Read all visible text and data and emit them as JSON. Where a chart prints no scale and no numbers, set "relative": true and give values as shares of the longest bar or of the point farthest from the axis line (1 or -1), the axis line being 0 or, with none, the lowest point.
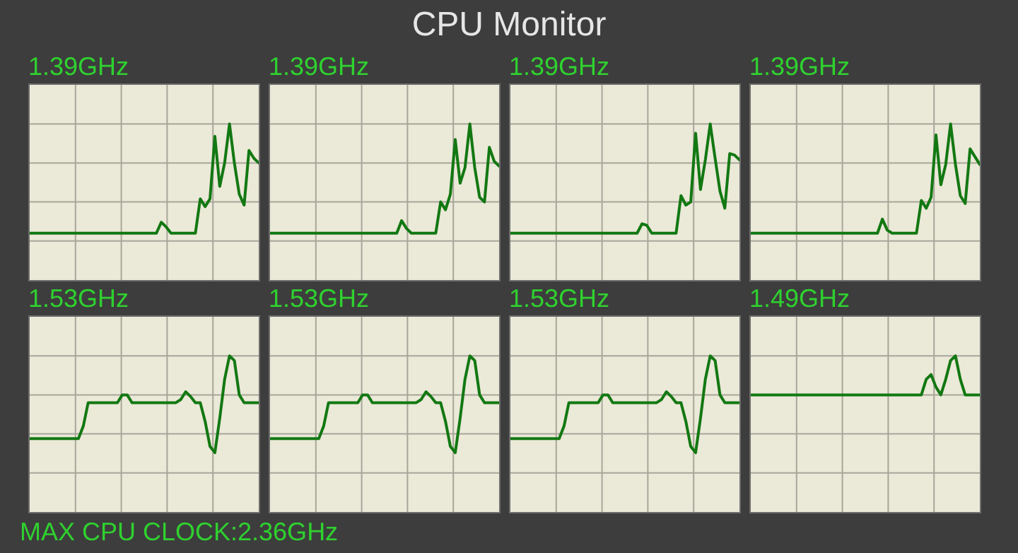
{
  "chart_data": [
    {
      "type": "other",
      "title": "CPU Monitor",
      "annotations": [
        "MAX CPU CLOCK:2.36GHz"
      ]
    },
    {
      "type": "line",
      "title": "1.39GHz",
      "relative": true,
      "grid": true,
      "color": "#127812",
      "categories": [
        null,
        null,
        null,
        null,
        null,
        null,
        null,
        null,
        null,
        null,
        null,
        null,
        null,
        null,
        null,
        null,
        null,
        null,
        null,
        null,
        null,
        null,
        null,
        null,
        null,
        null,
        null,
        null,
        null,
        null,
        null,
        null,
        null,
        null,
        null,
        null,
        null,
        null,
        null,
        null,
        null,
        null,
        null,
        null,
        null,
        null,
        null,
        null
      ],
      "values": [
        0.3,
        0.3,
        0.3,
        0.3,
        0.3,
        0.3,
        0.3,
        0.3,
        0.3,
        0.3,
        0.3,
        0.3,
        0.3,
        0.3,
        0.3,
        0.3,
        0.3,
        0.3,
        0.3,
        0.3,
        0.3,
        0.3,
        0.3,
        0.3,
        0.3,
        0.3,
        0.3,
        0.37,
        0.34,
        0.3,
        0.3,
        0.3,
        0.3,
        0.3,
        0.3,
        0.52,
        0.47,
        0.52,
        0.92,
        0.6,
        0.75,
        1,
        0.75,
        0.55,
        0.48,
        0.83,
        0.78,
        0.75
      ]
    },
    {
      "type": "line",
      "title": "1.39GHz",
      "relative": true,
      "grid": true,
      "color": "#127812",
      "categories": [
        null,
        null,
        null,
        null,
        null,
        null,
        null,
        null,
        null,
        null,
        null,
        null,
        null,
        null,
        null,
        null,
        null,
        null,
        null,
        null,
        null,
        null,
        null,
        null,
        null,
        null,
        null,
        null,
        null,
        null,
        null,
        null,
        null,
        null,
        null,
        null,
        null,
        null,
        null,
        null,
        null,
        null,
        null,
        null,
        null,
        null,
        null,
        null
      ],
      "values": [
        0.3,
        0.3,
        0.3,
        0.3,
        0.3,
        0.3,
        0.3,
        0.3,
        0.3,
        0.3,
        0.3,
        0.3,
        0.3,
        0.3,
        0.3,
        0.3,
        0.3,
        0.3,
        0.3,
        0.3,
        0.3,
        0.3,
        0.3,
        0.3,
        0.3,
        0.3,
        0.3,
        0.38,
        0.33,
        0.3,
        0.3,
        0.3,
        0.3,
        0.3,
        0.3,
        0.5,
        0.45,
        0.55,
        0.9,
        0.62,
        0.72,
        1,
        0.72,
        0.53,
        0.5,
        0.85,
        0.76,
        0.73
      ]
    },
    {
      "type": "line",
      "title": "1.39GHz",
      "relative": true,
      "grid": true,
      "color": "#127812",
      "categories": [
        null,
        null,
        null,
        null,
        null,
        null,
        null,
        null,
        null,
        null,
        null,
        null,
        null,
        null,
        null,
        null,
        null,
        null,
        null,
        null,
        null,
        null,
        null,
        null,
        null,
        null,
        null,
        null,
        null,
        null,
        null,
        null,
        null,
        null,
        null,
        null,
        null,
        null,
        null,
        null,
        null,
        null,
        null,
        null,
        null,
        null,
        null,
        null
      ],
      "values": [
        0.3,
        0.3,
        0.3,
        0.3,
        0.3,
        0.3,
        0.3,
        0.3,
        0.3,
        0.3,
        0.3,
        0.3,
        0.3,
        0.3,
        0.3,
        0.3,
        0.3,
        0.3,
        0.3,
        0.3,
        0.3,
        0.3,
        0.3,
        0.3,
        0.3,
        0.3,
        0.3,
        0.36,
        0.35,
        0.3,
        0.3,
        0.3,
        0.3,
        0.3,
        0.3,
        0.54,
        0.48,
        0.5,
        0.94,
        0.58,
        0.77,
        1,
        0.78,
        0.57,
        0.46,
        0.81,
        0.8,
        0.77
      ]
    },
    {
      "type": "line",
      "title": "1.39GHz",
      "relative": true,
      "grid": true,
      "color": "#127812",
      "categories": [
        null,
        null,
        null,
        null,
        null,
        null,
        null,
        null,
        null,
        null,
        null,
        null,
        null,
        null,
        null,
        null,
        null,
        null,
        null,
        null,
        null,
        null,
        null,
        null,
        null,
        null,
        null,
        null,
        null,
        null,
        null,
        null,
        null,
        null,
        null,
        null,
        null,
        null,
        null,
        null,
        null,
        null,
        null,
        null,
        null,
        null,
        null,
        null
      ],
      "values": [
        0.3,
        0.3,
        0.3,
        0.3,
        0.3,
        0.3,
        0.3,
        0.3,
        0.3,
        0.3,
        0.3,
        0.3,
        0.3,
        0.3,
        0.3,
        0.3,
        0.3,
        0.3,
        0.3,
        0.3,
        0.3,
        0.3,
        0.3,
        0.3,
        0.3,
        0.3,
        0.3,
        0.39,
        0.32,
        0.3,
        0.3,
        0.3,
        0.3,
        0.3,
        0.3,
        0.51,
        0.46,
        0.53,
        0.93,
        0.61,
        0.74,
        1,
        0.74,
        0.54,
        0.49,
        0.84,
        0.79,
        0.74
      ]
    },
    {
      "type": "line",
      "title": "1.53GHz",
      "relative": true,
      "grid": true,
      "color": "#127812",
      "categories": [
        null,
        null,
        null,
        null,
        null,
        null,
        null,
        null,
        null,
        null,
        null,
        null,
        null,
        null,
        null,
        null,
        null,
        null,
        null,
        null,
        null,
        null,
        null,
        null,
        null,
        null,
        null,
        null,
        null,
        null,
        null,
        null,
        null,
        null,
        null,
        null,
        null,
        null,
        null,
        null,
        null,
        null,
        null,
        null,
        null,
        null,
        null,
        null
      ],
      "values": [
        0.47,
        0.47,
        0.47,
        0.47,
        0.47,
        0.47,
        0.47,
        0.47,
        0.47,
        0.47,
        0.47,
        0.55,
        0.7,
        0.7,
        0.7,
        0.7,
        0.7,
        0.7,
        0.7,
        0.75,
        0.75,
        0.7,
        0.7,
        0.7,
        0.7,
        0.7,
        0.7,
        0.7,
        0.7,
        0.7,
        0.7,
        0.72,
        0.77,
        0.74,
        0.7,
        0.7,
        0.58,
        0.42,
        0.38,
        0.6,
        0.85,
        1,
        0.97,
        0.75,
        0.7,
        0.7,
        0.7,
        0.7
      ]
    },
    {
      "type": "line",
      "title": "1.53GHz",
      "relative": true,
      "grid": true,
      "color": "#127812",
      "categories": [
        null,
        null,
        null,
        null,
        null,
        null,
        null,
        null,
        null,
        null,
        null,
        null,
        null,
        null,
        null,
        null,
        null,
        null,
        null,
        null,
        null,
        null,
        null,
        null,
        null,
        null,
        null,
        null,
        null,
        null,
        null,
        null,
        null,
        null,
        null,
        null,
        null,
        null,
        null,
        null,
        null,
        null,
        null,
        null,
        null,
        null,
        null,
        null
      ],
      "values": [
        0.47,
        0.47,
        0.47,
        0.47,
        0.47,
        0.47,
        0.47,
        0.47,
        0.47,
        0.47,
        0.47,
        0.55,
        0.7,
        0.7,
        0.7,
        0.7,
        0.7,
        0.7,
        0.7,
        0.75,
        0.75,
        0.7,
        0.7,
        0.7,
        0.7,
        0.7,
        0.7,
        0.7,
        0.7,
        0.7,
        0.7,
        0.72,
        0.77,
        0.74,
        0.7,
        0.7,
        0.58,
        0.42,
        0.38,
        0.6,
        0.85,
        1,
        0.97,
        0.75,
        0.7,
        0.7,
        0.7,
        0.7
      ]
    },
    {
      "type": "line",
      "title": "1.53GHz",
      "relative": true,
      "grid": true,
      "color": "#127812",
      "categories": [
        null,
        null,
        null,
        null,
        null,
        null,
        null,
        null,
        null,
        null,
        null,
        null,
        null,
        null,
        null,
        null,
        null,
        null,
        null,
        null,
        null,
        null,
        null,
        null,
        null,
        null,
        null,
        null,
        null,
        null,
        null,
        null,
        null,
        null,
        null,
        null,
        null,
        null,
        null,
        null,
        null,
        null,
        null,
        null,
        null,
        null,
        null,
        null
      ],
      "values": [
        0.47,
        0.47,
        0.47,
        0.47,
        0.47,
        0.47,
        0.47,
        0.47,
        0.47,
        0.47,
        0.47,
        0.55,
        0.7,
        0.7,
        0.7,
        0.7,
        0.7,
        0.7,
        0.7,
        0.75,
        0.75,
        0.7,
        0.7,
        0.7,
        0.7,
        0.7,
        0.7,
        0.7,
        0.7,
        0.7,
        0.7,
        0.72,
        0.77,
        0.74,
        0.7,
        0.7,
        0.58,
        0.42,
        0.38,
        0.6,
        0.85,
        1,
        0.97,
        0.75,
        0.7,
        0.7,
        0.7,
        0.7
      ]
    },
    {
      "type": "line",
      "title": "1.49GHz",
      "relative": true,
      "grid": true,
      "color": "#127812",
      "categories": [
        null,
        null,
        null,
        null,
        null,
        null,
        null,
        null,
        null,
        null,
        null,
        null,
        null,
        null,
        null,
        null,
        null,
        null,
        null,
        null,
        null,
        null,
        null,
        null,
        null,
        null,
        null,
        null,
        null,
        null,
        null,
        null,
        null,
        null,
        null,
        null,
        null,
        null,
        null,
        null,
        null,
        null,
        null,
        null,
        null,
        null,
        null,
        null
      ],
      "values": [
        0.75,
        0.75,
        0.75,
        0.75,
        0.75,
        0.75,
        0.75,
        0.75,
        0.75,
        0.75,
        0.75,
        0.75,
        0.75,
        0.75,
        0.75,
        0.75,
        0.75,
        0.75,
        0.75,
        0.75,
        0.75,
        0.75,
        0.75,
        0.75,
        0.75,
        0.75,
        0.75,
        0.75,
        0.75,
        0.75,
        0.75,
        0.75,
        0.75,
        0.75,
        0.75,
        0.75,
        0.85,
        0.88,
        0.8,
        0.75,
        0.85,
        0.97,
        1,
        0.85,
        0.75,
        0.75,
        0.75,
        0.75
      ]
    }
  ]
}
